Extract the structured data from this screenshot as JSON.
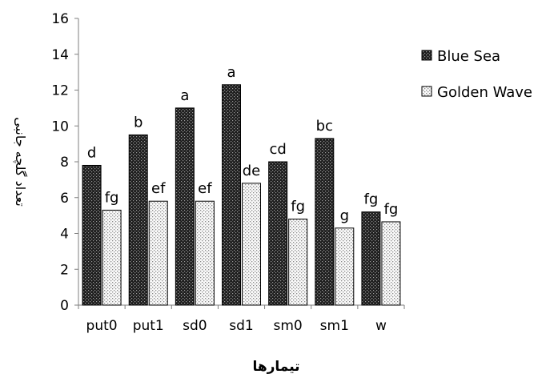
{
  "chart_data": {
    "type": "bar",
    "categories": [
      "put0",
      "put1",
      "sd0",
      "sd1",
      "sm0",
      "sm1",
      "w"
    ],
    "series": [
      {
        "name": "Blue Sea",
        "values": [
          7.8,
          9.5,
          11.0,
          12.3,
          8.0,
          9.3,
          5.2
        ],
        "letters": [
          "d",
          "b",
          "a",
          "a",
          "cd",
          "bc",
          "fg"
        ]
      },
      {
        "name": "Golden Wave",
        "values": [
          5.3,
          5.8,
          5.8,
          6.8,
          4.8,
          4.3,
          4.65
        ],
        "letters": [
          "fg",
          "ef",
          "ef",
          "de",
          "fg",
          "g",
          "fg"
        ]
      }
    ],
    "xlabel": "تیمارها",
    "ylabel": "تعداد گلچه جانبی",
    "ylim": [
      0,
      16
    ],
    "yticks": [
      0,
      2,
      4,
      6,
      8,
      10,
      12,
      14,
      16
    ],
    "legend_position": "right",
    "grid": false,
    "colors": {
      "Blue Sea": "#2a2a2a",
      "Golden Wave": "#e6e6e6"
    }
  }
}
